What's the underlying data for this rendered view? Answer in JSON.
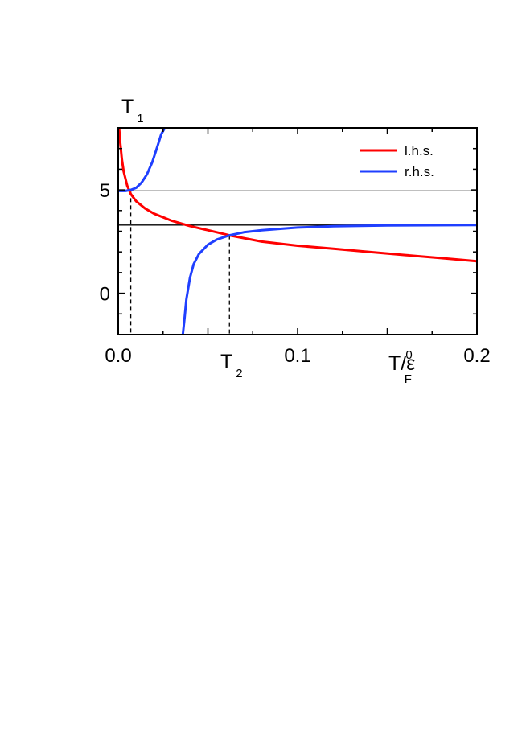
{
  "chart_data": {
    "type": "line",
    "xlabel": "",
    "ylabel": "",
    "xlim": [
      0.0,
      0.2
    ],
    "ylim": [
      -2,
      8
    ],
    "x_ticks": [
      {
        "value": 0.0,
        "label": "0.0"
      },
      {
        "value": 0.1,
        "label": "0.1"
      },
      {
        "value": 0.2,
        "label": "0.2"
      }
    ],
    "y_ticks": [
      {
        "value": 0,
        "label": "0"
      },
      {
        "value": 5,
        "label": "5"
      }
    ],
    "x_axis_label": {
      "main": "T/ε",
      "sub": "F",
      "sup": "0"
    },
    "legend": {
      "position": "top-right",
      "entries": [
        "l.h.s.",
        "r.h.s."
      ]
    },
    "series": [
      {
        "name": "l.h.s.",
        "color": "#ff0000",
        "x": [
          0.0005,
          0.001,
          0.002,
          0.003,
          0.005,
          0.007,
          0.01,
          0.015,
          0.02,
          0.03,
          0.04,
          0.05,
          0.062,
          0.08,
          0.1,
          0.12,
          0.14,
          0.16,
          0.18,
          0.2
        ],
        "y": [
          8.0,
          7.4,
          6.5,
          5.9,
          5.2,
          4.8,
          4.45,
          4.1,
          3.85,
          3.5,
          3.25,
          3.05,
          2.8,
          2.5,
          2.3,
          2.15,
          2.0,
          1.85,
          1.7,
          1.55
        ]
      },
      {
        "name": "r.h.s.",
        "color": "#1f3fff",
        "segments": [
          {
            "x": [
              0.0,
              0.004,
              0.007,
              0.01,
              0.013,
              0.016,
              0.019,
              0.022,
              0.024,
              0.026
            ],
            "y": [
              4.95,
              4.95,
              5.0,
              5.1,
              5.35,
              5.75,
              6.35,
              7.15,
              7.7,
              8.0
            ]
          },
          {
            "x": [
              0.036,
              0.037,
              0.038,
              0.04,
              0.042,
              0.045,
              0.05,
              0.055,
              0.062,
              0.07,
              0.08,
              0.1,
              0.12,
              0.15,
              0.2
            ],
            "y": [
              -2.0,
              -1.2,
              -0.3,
              0.75,
              1.4,
              1.9,
              2.35,
              2.6,
              2.8,
              2.95,
              3.05,
              3.18,
              3.24,
              3.28,
              3.3
            ]
          }
        ]
      }
    ],
    "horizontal_lines": [
      {
        "y": 4.95,
        "color": "#000000"
      },
      {
        "y": 3.3,
        "color": "#000000"
      }
    ],
    "annotations": [
      {
        "label": "T",
        "sub": "1",
        "x": 0.007,
        "y_from": 4.95,
        "style": "dashed"
      },
      {
        "label": "T",
        "sub": "2",
        "x": 0.062,
        "y_from": 2.8,
        "style": "dashed"
      }
    ]
  }
}
